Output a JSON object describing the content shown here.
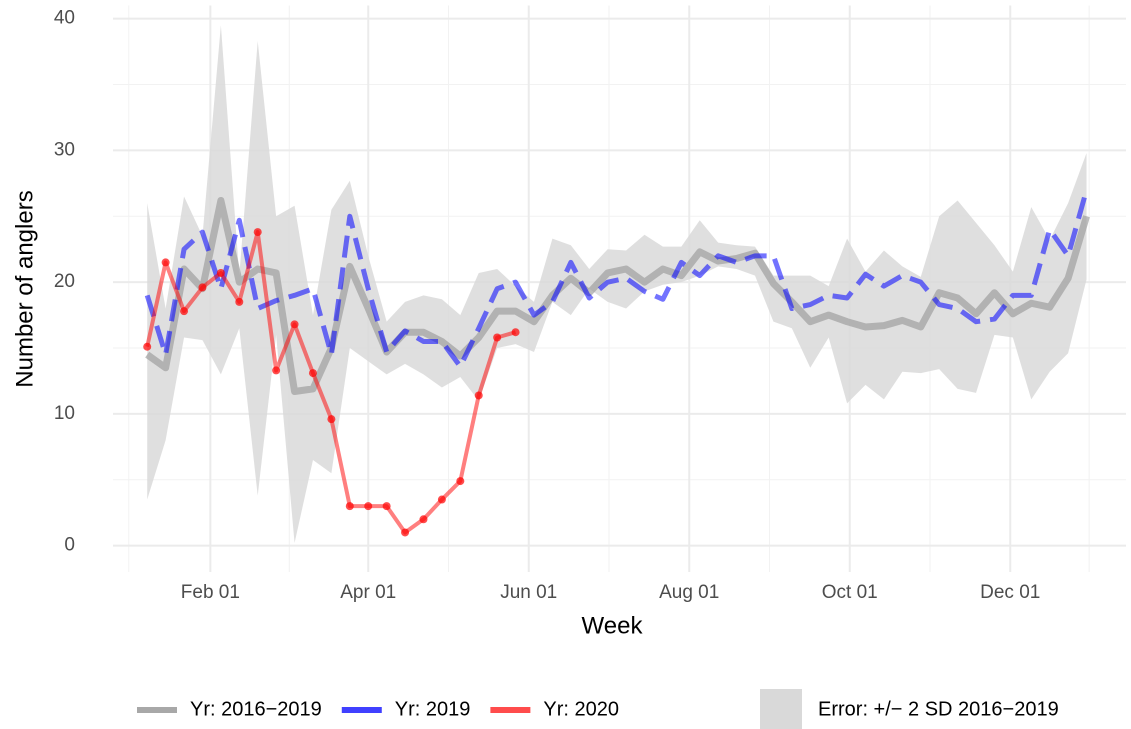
{
  "chart_data": {
    "type": "line",
    "x_label": "Week",
    "y_label": "Number of anglers",
    "x": [
      8,
      15,
      22,
      29,
      36,
      43,
      50,
      57,
      64,
      71,
      78,
      85,
      92,
      99,
      106,
      113,
      120,
      127,
      134,
      141,
      148,
      155,
      162,
      169,
      176,
      183,
      190,
      197,
      204,
      211,
      218,
      225,
      232,
      239,
      246,
      253,
      260,
      267,
      274,
      281,
      288,
      295,
      302,
      309,
      316,
      323,
      330,
      337,
      344,
      351,
      358,
      365
    ],
    "xlim": [
      -5,
      380
    ],
    "xticks": [
      {
        "value": 32,
        "label": "Feb 01"
      },
      {
        "value": 92,
        "label": "Apr 01"
      },
      {
        "value": 153,
        "label": "Jun 01"
      },
      {
        "value": 214,
        "label": "Aug 01"
      },
      {
        "value": 275,
        "label": "Oct 01"
      },
      {
        "value": 336,
        "label": "Dec 01"
      }
    ],
    "xminorticks": [
      1,
      62,
      122.5,
      183.5,
      244.5,
      305.5,
      366
    ],
    "ylim": [
      -2,
      41
    ],
    "yticks": [
      0,
      10,
      20,
      30,
      40
    ],
    "yminorticks": [
      5,
      15,
      25,
      35
    ],
    "grid": true,
    "legend": "bottom",
    "ribbon": {
      "name": "Error: +/− 2 SD 2016−2019",
      "color": "#d9d9d9",
      "upper": [
        26,
        18,
        26.5,
        23.5,
        39.5,
        20.5,
        38.3,
        25,
        25.8,
        17.5,
        25.5,
        27.7,
        22,
        17,
        18.5,
        19,
        18.7,
        17.5,
        20.7,
        21,
        19.7,
        18.5,
        23.3,
        22.8,
        21,
        22.5,
        22.4,
        23.6,
        22.7,
        22.7,
        24.7,
        23,
        22.8,
        22.7,
        20.5,
        20.5,
        20.5,
        19.7,
        23.3,
        20.8,
        22.4,
        21.2,
        20.4,
        25,
        26.2,
        24.5,
        22.8,
        20.8,
        25.7,
        23.2,
        26,
        29.8
      ],
      "lower": [
        3.5,
        8,
        15.8,
        15.6,
        13,
        16.5,
        3.8,
        16,
        0.2,
        6.5,
        5.5,
        15,
        14,
        13,
        13.8,
        13,
        12,
        12.8,
        11,
        15,
        15.3,
        14.7,
        18.5,
        17.5,
        19.5,
        18.5,
        18,
        19.3,
        19.8,
        20,
        20.5,
        21.2,
        21,
        20.5,
        17,
        16.5,
        13.5,
        15.8,
        10.8,
        12.2,
        11.1,
        13.2,
        13.1,
        13.4,
        11.9,
        11.6,
        16,
        15.8,
        11.1,
        13.2,
        14.6,
        20.2
      ]
    },
    "series": [
      {
        "name": "Yr: 2016−2019",
        "color": "#999999",
        "opacity": 0.65,
        "width": 7,
        "dash": false,
        "points": false,
        "values": [
          14.5,
          13.5,
          21,
          19.5,
          26.2,
          20,
          21,
          20.7,
          11.7,
          11.9,
          15,
          21.2,
          18,
          14.7,
          16.2,
          16.2,
          15.5,
          14.4,
          15.8,
          17.8,
          17.8,
          17,
          19,
          20.3,
          19.2,
          20.7,
          21,
          20,
          21,
          20.5,
          22.3,
          21.6,
          21.8,
          22.2,
          19.9,
          18.5,
          17,
          17.5,
          17,
          16.6,
          16.7,
          17.1,
          16.6,
          19.2,
          18.8,
          17.6,
          19.2,
          17.6,
          18.4,
          18.1,
          20.3,
          25
        ]
      },
      {
        "name": "Yr: 2019",
        "color": "#0000ff",
        "opacity": 0.55,
        "width": 5,
        "dash": true,
        "points": false,
        "values": [
          19,
          14.5,
          22.5,
          23.8,
          19.5,
          24.7,
          18,
          18.6,
          19,
          19.5,
          14.5,
          25,
          19.5,
          14.7,
          16.3,
          15.5,
          15.5,
          13.6,
          16.5,
          19.5,
          20,
          17.5,
          18.5,
          21.5,
          18.8,
          20,
          20.3,
          19.3,
          18.7,
          21.5,
          20.5,
          22,
          21.5,
          22,
          22,
          18,
          18.3,
          19,
          18.8,
          20.6,
          19.7,
          20.5,
          20,
          18.3,
          18,
          17,
          17.2,
          19,
          19,
          24,
          22,
          27
        ]
      },
      {
        "name": "Yr: 2020",
        "color": "#ff0000",
        "opacity": 0.5,
        "width": 4,
        "dash": false,
        "points": true,
        "values": [
          15.1,
          21.5,
          17.8,
          19.6,
          20.7,
          18.5,
          23.8,
          13.3,
          16.8,
          13.1,
          9.6,
          3,
          3,
          3,
          1,
          2,
          3.5,
          4.9,
          11.4,
          15.8,
          16.2,
          null,
          null,
          null,
          null,
          null,
          null,
          null,
          null,
          null,
          null,
          null,
          null,
          null,
          null,
          null,
          null,
          null,
          null,
          null,
          null,
          null,
          null,
          null,
          null,
          null,
          null,
          null,
          null,
          null,
          null,
          null
        ]
      }
    ]
  }
}
